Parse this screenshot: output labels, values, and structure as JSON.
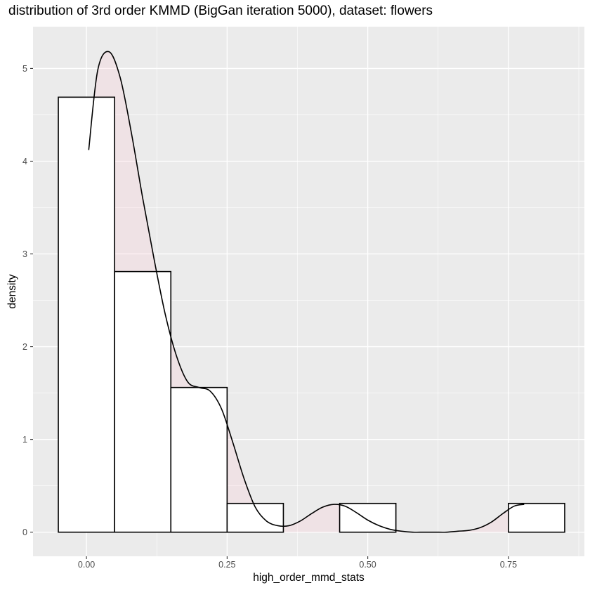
{
  "chart_data": {
    "type": "histogram+density",
    "title": "distribution of 3rd order KMMD (BigGan iteration 5000), dataset: flowers",
    "xlabel": "high_order_mmd_stats",
    "ylabel": "density",
    "xlim": [
      -0.095,
      0.885
    ],
    "ylim": [
      -0.26,
      5.45
    ],
    "x_ticks": [
      0.0,
      0.25,
      0.5,
      0.75
    ],
    "x_tick_labels": [
      "0.00",
      "0.25",
      "0.50",
      "0.75"
    ],
    "y_ticks": [
      0,
      1,
      2,
      3,
      4,
      5
    ],
    "y_tick_labels": [
      "0",
      "1",
      "2",
      "3",
      "4",
      "5"
    ],
    "bin_width": 0.1,
    "bins": [
      {
        "x0": -0.05,
        "x1": 0.05,
        "density": 4.69
      },
      {
        "x0": 0.05,
        "x1": 0.15,
        "density": 2.81
      },
      {
        "x0": 0.15,
        "x1": 0.25,
        "density": 1.56
      },
      {
        "x0": 0.25,
        "x1": 0.35,
        "density": 0.31
      },
      {
        "x0": 0.45,
        "x1": 0.55,
        "density": 0.31
      },
      {
        "x0": 0.75,
        "x1": 0.85,
        "density": 0.31
      }
    ],
    "density_curve": {
      "x": [
        0.004,
        0.02,
        0.04,
        0.06,
        0.08,
        0.1,
        0.12,
        0.14,
        0.16,
        0.18,
        0.2,
        0.22,
        0.24,
        0.26,
        0.28,
        0.3,
        0.32,
        0.34,
        0.36,
        0.38,
        0.4,
        0.42,
        0.44,
        0.46,
        0.48,
        0.5,
        0.52,
        0.54,
        0.56,
        0.58,
        0.6,
        0.62,
        0.64,
        0.66,
        0.68,
        0.7,
        0.72,
        0.74,
        0.76,
        0.778
      ],
      "y": [
        4.12,
        4.98,
        5.18,
        4.9,
        4.3,
        3.6,
        2.95,
        2.35,
        1.9,
        1.62,
        1.56,
        1.52,
        1.33,
        0.97,
        0.58,
        0.27,
        0.12,
        0.07,
        0.07,
        0.12,
        0.2,
        0.27,
        0.3,
        0.28,
        0.21,
        0.13,
        0.07,
        0.03,
        0.01,
        0.0,
        0.0,
        0.0,
        0.0,
        0.01,
        0.02,
        0.05,
        0.11,
        0.2,
        0.28,
        0.3
      ]
    },
    "grid": true,
    "legend": "none",
    "colors": {
      "panel": "#EBEBEB",
      "grid_major": "#FFFFFF",
      "bar_fill": "#FFFFFF",
      "bar_outline": "#000000",
      "density_fill": "#FFC0CB",
      "density_line": "#000000"
    }
  }
}
